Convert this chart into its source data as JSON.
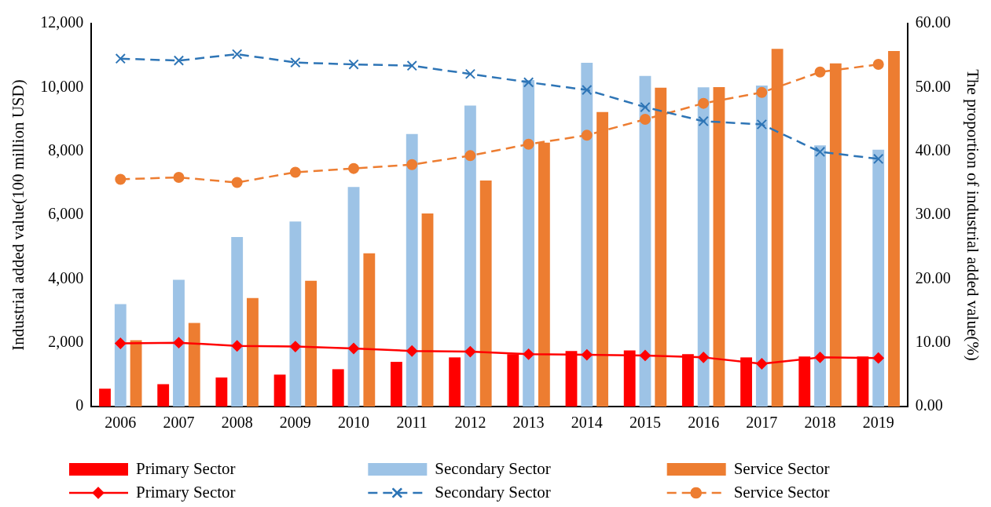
{
  "chart_data": {
    "type": "bar",
    "categories": [
      "2006",
      "2007",
      "2008",
      "2009",
      "2010",
      "2011",
      "2012",
      "2013",
      "2014",
      "2015",
      "2016",
      "2017",
      "2018",
      "2019"
    ],
    "ylabel": "Industrial added value(100 million USD)",
    "y2label": "The proportion of industrial added value(%)",
    "ylim": [
      0,
      12000
    ],
    "yticks": [
      {
        "value": 0,
        "label": "0"
      },
      {
        "value": 2000,
        "label": "2,000"
      },
      {
        "value": 4000,
        "label": "4,000"
      },
      {
        "value": 6000,
        "label": "6,000"
      },
      {
        "value": 8000,
        "label": "8,000"
      },
      {
        "value": 10000,
        "label": "10,000"
      },
      {
        "value": 12000,
        "label": "12,000"
      }
    ],
    "y2lim": [
      0,
      60
    ],
    "y2ticks": [
      {
        "value": 0,
        "label": "0.00"
      },
      {
        "value": 10,
        "label": "10.00"
      },
      {
        "value": 20,
        "label": "20.00"
      },
      {
        "value": 30,
        "label": "30.00"
      },
      {
        "value": 40,
        "label": "40.00"
      },
      {
        "value": 50,
        "label": "50.00"
      },
      {
        "value": 60,
        "label": "60.00"
      }
    ],
    "legend": "bottom",
    "grid": false,
    "series": [
      {
        "name": "Primary Sector",
        "color": "#ff0000",
        "values": [
          560,
          700,
          910,
          1000,
          1170,
          1400,
          1540,
          1640,
          1740,
          1760,
          1640,
          1540,
          1570,
          1570
        ]
      },
      {
        "name": "Secondary Sector",
        "color": "#9dc3e6",
        "values": [
          3210,
          3970,
          5310,
          5800,
          6880,
          8540,
          9430,
          10230,
          10770,
          10360,
          10000,
          10060,
          8180,
          8050
        ]
      },
      {
        "name": "Service Sector",
        "color": "#ed7d31",
        "values": [
          2080,
          2620,
          3400,
          3940,
          4800,
          6050,
          7080,
          8270,
          9230,
          9990,
          10010,
          11210,
          10750,
          11140
        ]
      },
      {
        "name": "Primary Sector",
        "type": "line",
        "axis": "y2",
        "color": "#ff0000",
        "marker": "diamond",
        "line_style": "solid",
        "values": [
          9.9,
          10.0,
          9.5,
          9.4,
          9.1,
          8.7,
          8.6,
          8.2,
          8.1,
          8.0,
          7.7,
          6.7,
          7.7,
          7.6
        ]
      },
      {
        "name": "Secondary Sector",
        "type": "line",
        "axis": "y2",
        "color": "#2e75b6",
        "marker": "cross",
        "line_style": "dashed",
        "values": [
          54.5,
          54.2,
          55.2,
          53.9,
          53.6,
          53.4,
          52.1,
          50.8,
          49.6,
          46.9,
          44.7,
          44.2,
          39.9,
          38.8
        ]
      },
      {
        "name": "Service Sector",
        "type": "line",
        "axis": "y2",
        "color": "#ed7d31",
        "marker": "circle",
        "line_style": "dashed",
        "values": [
          35.6,
          35.9,
          35.1,
          36.7,
          37.3,
          37.9,
          39.3,
          41.1,
          42.5,
          45.0,
          47.5,
          49.2,
          52.4,
          53.6
        ]
      }
    ]
  }
}
